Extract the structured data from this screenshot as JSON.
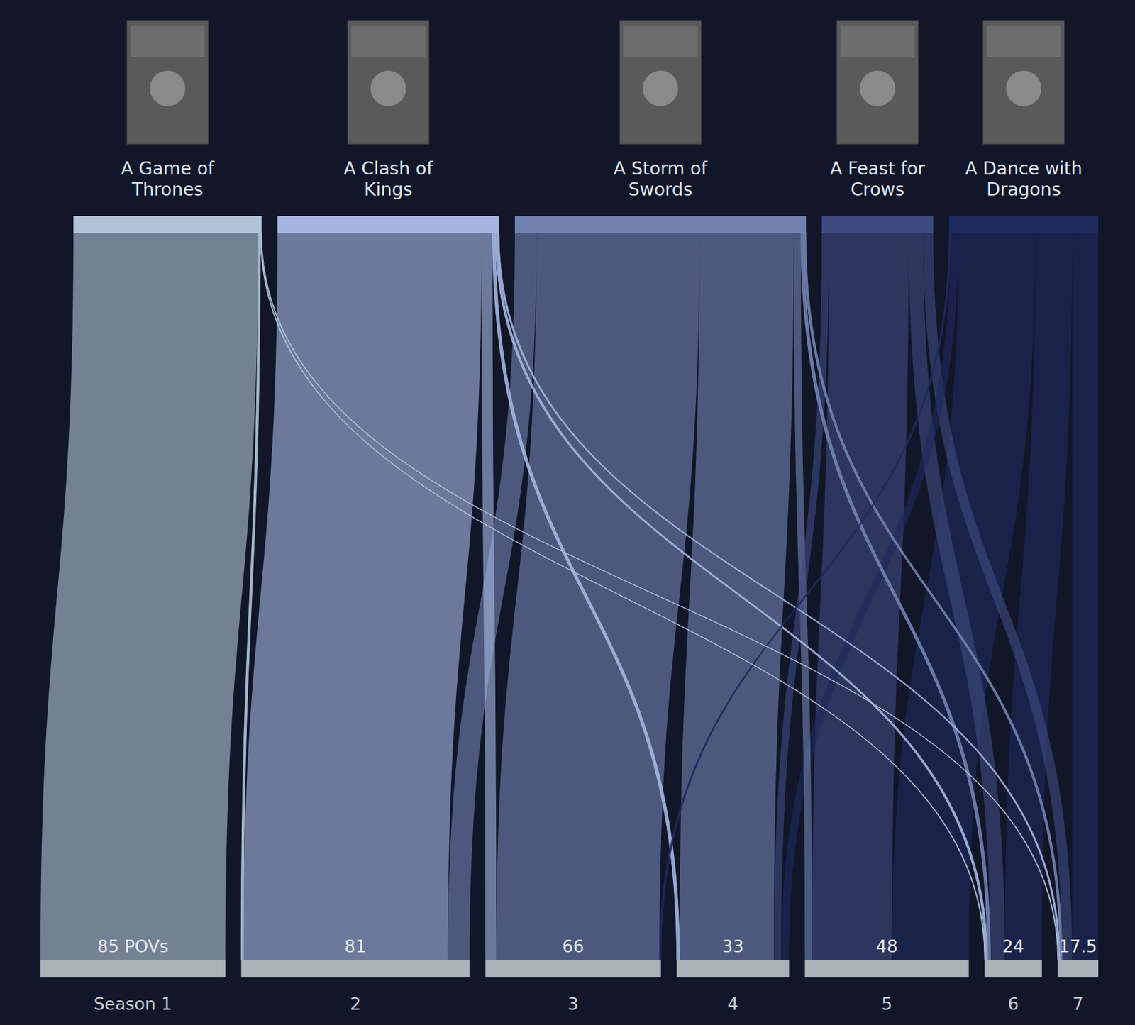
{
  "chart_data": {
    "type": "sankey",
    "sources": [
      {
        "name": "A Game of Thrones",
        "color": "#b0c4d8"
      },
      {
        "name": "A Clash of Kings",
        "color": "#a4b6e0"
      },
      {
        "name": "A Storm of Swords",
        "color": "#7283b0"
      },
      {
        "name": "A Feast for Crows",
        "color": "#3d4a80"
      },
      {
        "name": "A Dance with Dragons",
        "color": "#1f2a5e"
      }
    ],
    "targets": {
      "categories": [
        "Season 1",
        "2",
        "3",
        "4",
        "5",
        "6",
        "7"
      ],
      "values": [
        85,
        81,
        66,
        33,
        48,
        24,
        17.5
      ],
      "value_labels": [
        "85 POVs",
        "81",
        "66",
        "33",
        "48",
        "24",
        "17.5"
      ],
      "color": "#aab4b8"
    },
    "flows": [
      {
        "source": 0,
        "target": 0,
        "value": 255
      },
      {
        "source": 0,
        "target": 1,
        "value": 3
      },
      {
        "source": 0,
        "target": 5,
        "value": 1
      },
      {
        "source": 0,
        "target": 6,
        "value": 1
      },
      {
        "source": 1,
        "target": 1,
        "value": 282
      },
      {
        "source": 1,
        "target": 2,
        "value": 15
      },
      {
        "source": 1,
        "target": 3,
        "value": 4
      },
      {
        "source": 1,
        "target": 5,
        "value": 3
      },
      {
        "source": 1,
        "target": 6,
        "value": 2
      },
      {
        "source": 2,
        "target": 1,
        "value": 30
      },
      {
        "source": 2,
        "target": 2,
        "value": 225
      },
      {
        "source": 2,
        "target": 3,
        "value": 130
      },
      {
        "source": 2,
        "target": 4,
        "value": 10
      },
      {
        "source": 2,
        "target": 5,
        "value": 4
      },
      {
        "source": 2,
        "target": 6,
        "value": 3
      },
      {
        "source": 3,
        "target": 3,
        "value": 10
      },
      {
        "source": 3,
        "target": 4,
        "value": 110
      },
      {
        "source": 3,
        "target": 5,
        "value": 20
      },
      {
        "source": 3,
        "target": 6,
        "value": 14
      },
      {
        "source": 4,
        "target": 2,
        "value": 2
      },
      {
        "source": 4,
        "target": 3,
        "value": 11
      },
      {
        "source": 4,
        "target": 4,
        "value": 106
      },
      {
        "source": 4,
        "target": 5,
        "value": 51
      },
      {
        "source": 4,
        "target": 6,
        "value": 36
      }
    ]
  }
}
